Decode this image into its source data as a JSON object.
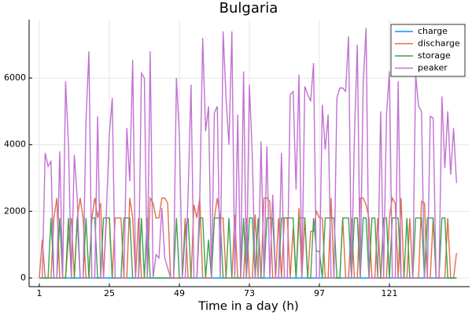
{
  "chart_data": {
    "type": "line",
    "title": "Bulgaria",
    "x_label": "Time in a day (h)",
    "x": [
      1,
      2,
      3,
      4,
      5,
      6,
      7,
      8,
      9,
      10,
      11,
      12,
      13,
      14,
      15,
      16,
      17,
      18,
      19,
      20,
      21,
      22,
      23,
      24,
      25,
      26,
      27,
      28,
      29,
      30,
      31,
      32,
      33,
      34,
      35,
      36,
      37,
      38,
      39,
      40,
      41,
      42,
      43,
      44,
      45,
      46,
      47,
      48,
      49,
      50,
      51,
      52,
      53,
      54,
      55,
      56,
      57,
      58,
      59,
      60,
      61,
      62,
      63,
      64,
      65,
      66,
      67,
      68,
      69,
      70,
      71,
      72,
      73,
      74,
      75,
      76,
      77,
      78,
      79,
      80,
      81,
      82,
      83,
      84,
      85,
      86,
      87,
      88,
      89,
      90,
      91,
      92,
      93,
      94,
      95,
      96,
      97,
      98,
      99,
      100,
      101,
      102,
      103,
      104,
      105,
      106,
      107,
      108,
      109,
      110,
      111,
      112,
      113,
      114,
      115,
      116,
      117,
      118,
      119,
      120,
      121,
      122,
      123,
      124,
      125,
      126,
      127,
      128,
      129,
      130,
      131,
      132,
      133,
      134,
      135,
      136,
      137,
      138,
      139,
      140,
      141,
      142,
      143,
      144
    ],
    "series": [
      {
        "name": "charge",
        "color": "#009af9",
        "values": [
          0,
          0,
          0,
          0,
          0,
          0,
          0,
          0,
          0,
          0,
          0,
          0,
          0,
          0,
          0,
          0,
          0,
          0,
          0,
          0,
          0,
          0,
          0,
          0,
          0,
          0,
          0,
          0,
          0,
          0,
          0,
          0,
          0,
          0,
          0,
          0,
          0,
          0,
          0,
          0,
          0,
          0,
          0,
          0,
          0,
          0,
          0,
          0,
          0,
          0,
          0,
          0,
          0,
          0,
          0,
          0,
          0,
          0,
          0,
          0,
          0,
          0,
          0,
          0,
          0,
          0,
          0,
          0,
          0,
          0,
          0,
          0,
          0,
          0,
          0,
          0,
          0,
          0,
          0,
          0,
          0,
          0,
          0,
          0,
          0,
          0,
          0,
          0,
          0,
          0,
          0,
          0,
          0,
          0,
          0,
          0,
          0,
          0,
          0,
          0,
          0,
          0,
          0,
          0,
          0,
          0,
          0,
          0,
          0,
          0,
          0,
          0,
          0,
          0,
          0,
          0,
          0,
          0,
          0,
          0,
          0,
          0,
          0,
          0,
          0,
          0,
          0,
          0,
          0,
          0,
          0,
          0,
          0,
          0,
          0,
          0,
          0,
          0,
          0,
          0,
          0,
          0,
          0,
          0
        ]
      },
      {
        "name": "discharge",
        "color": "#e26f46",
        "values": [
          0,
          1150,
          0,
          0,
          0,
          1800,
          2400,
          0,
          0,
          0,
          1200,
          1800,
          0,
          1800,
          2400,
          1800,
          0,
          0,
          1800,
          2400,
          1800,
          2250,
          0,
          1800,
          1800,
          0,
          1800,
          1800,
          1800,
          0,
          0,
          2400,
          1800,
          0,
          1800,
          0,
          0,
          0,
          2400,
          2250,
          1800,
          1800,
          2400,
          2400,
          2250,
          0,
          0,
          0,
          0,
          0,
          1800,
          0,
          0,
          2200,
          1800,
          2400,
          0,
          0,
          0,
          0,
          1800,
          2400,
          1800,
          1800,
          0,
          0,
          0,
          1900,
          0,
          0,
          0,
          1800,
          0,
          0,
          1900,
          0,
          0,
          2400,
          2400,
          2300,
          0,
          0,
          1800,
          0,
          1800,
          1800,
          0,
          1500,
          0,
          2100,
          0,
          1800,
          0,
          1400,
          1400,
          2000,
          1800,
          1800,
          0,
          0,
          2400,
          0,
          0,
          0,
          1800,
          0,
          0,
          1800,
          0,
          0,
          2400,
          2400,
          2200,
          1800,
          0,
          0,
          1800,
          0,
          0,
          0,
          1800,
          2400,
          2250,
          0,
          2400,
          0,
          0,
          1800,
          0,
          0,
          0,
          2300,
          2250,
          0,
          0,
          1800,
          0,
          0,
          0,
          0,
          1800,
          0,
          0,
          750
        ]
      },
      {
        "name": "storage",
        "color": "#3da44d",
        "values": [
          0,
          0,
          0,
          0,
          1800,
          0,
          0,
          1800,
          0,
          0,
          1800,
          0,
          0,
          1800,
          0,
          0,
          1800,
          0,
          1800,
          1800,
          0,
          0,
          1800,
          1800,
          1800,
          0,
          0,
          0,
          0,
          1800,
          1800,
          1800,
          0,
          0,
          0,
          1800,
          0,
          1800,
          0,
          0,
          0,
          0,
          0,
          0,
          0,
          0,
          0,
          1800,
          0,
          0,
          1400,
          1800,
          0,
          0,
          0,
          1800,
          1800,
          0,
          1150,
          0,
          1800,
          1800,
          1800,
          0,
          0,
          1800,
          0,
          0,
          0,
          0,
          1800,
          0,
          1800,
          1800,
          0,
          1800,
          0,
          0,
          1800,
          1800,
          1800,
          0,
          0,
          1800,
          1800,
          1800,
          1800,
          1800,
          0,
          1800,
          1800,
          1800,
          0,
          0,
          1800,
          800,
          800,
          0,
          1800,
          1800,
          1800,
          1800,
          0,
          0,
          1800,
          1800,
          1800,
          0,
          1800,
          1800,
          0,
          1800,
          1800,
          0,
          1800,
          1800,
          0,
          0,
          1800,
          1800,
          0,
          1800,
          1800,
          1800,
          0,
          0,
          1800,
          0,
          0,
          1800,
          1800,
          1800,
          0,
          1800,
          1800,
          1800,
          0,
          0,
          1800,
          1800,
          0,
          0,
          0,
          0
        ]
      },
      {
        "name": "peaker",
        "color": "#c271d2",
        "values": [
          0,
          0,
          3750,
          3350,
          3500,
          0,
          0,
          3800,
          0,
          5900,
          4000,
          0,
          3700,
          2400,
          0,
          0,
          4700,
          6800,
          0,
          0,
          4850,
          0,
          0,
          2000,
          4300,
          5400,
          0,
          0,
          0,
          0,
          4500,
          2900,
          6550,
          0,
          0,
          6150,
          6000,
          0,
          6800,
          0,
          700,
          600,
          2100,
          600,
          300,
          0,
          0,
          6000,
          4300,
          0,
          0,
          2500,
          5800,
          0,
          0,
          2400,
          7200,
          4400,
          5150,
          0,
          4950,
          5150,
          0,
          7400,
          5400,
          4000,
          7400,
          0,
          4900,
          0,
          6200,
          0,
          5800,
          3700,
          0,
          0,
          4100,
          0,
          3950,
          0,
          2500,
          0,
          0,
          3750,
          0,
          0,
          5500,
          5600,
          2650,
          6100,
          0,
          5750,
          5500,
          5300,
          6450,
          0,
          0,
          5200,
          3850,
          4900,
          0,
          0,
          5400,
          5700,
          5700,
          5600,
          7250,
          0,
          4200,
          7000,
          0,
          5800,
          7500,
          0,
          0,
          0,
          0,
          5000,
          0,
          4900,
          6200,
          0,
          0,
          5900,
          0,
          0,
          0,
          0,
          0,
          6100,
          5150,
          5000,
          0,
          0,
          4850,
          4800,
          0,
          0,
          5450,
          3300,
          5000,
          3100,
          4500,
          2850
        ]
      }
    ],
    "xlim": [
      -2.5,
      148.5
    ],
    "ylim": [
      -260,
      7750
    ],
    "xticks": [
      1,
      25,
      49,
      73,
      97,
      121
    ],
    "yticks": [
      0,
      2000,
      4000,
      6000
    ],
    "grid": true,
    "legend": "top-right"
  }
}
